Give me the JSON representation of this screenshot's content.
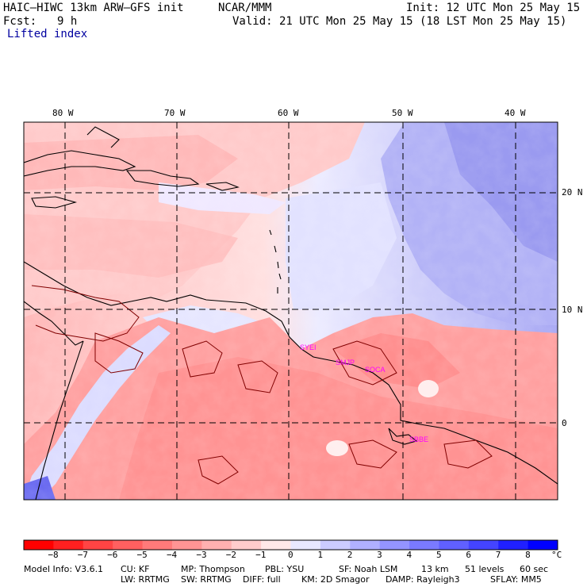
{
  "header": {
    "model": "HAIC–HIWC 13km ARW–GFS init",
    "org": "NCAR/MMM",
    "init": "Init: 12 UTC Mon 25 May 15",
    "fcst_label": "Fcst:",
    "fcst_value": "9 h",
    "valid": "Valid: 21 UTC Mon 25 May 15 (18 LST Mon 25 May 15)",
    "field": "Lifted index"
  },
  "map": {
    "lon_labels": [
      "80 W",
      "70 W",
      "60 W",
      "50 W",
      "40 W"
    ],
    "lat_labels": [
      "20 N",
      "10 N",
      "0"
    ],
    "stations": [
      "SYEI",
      "SMJP",
      "SOCA",
      "SBBE"
    ]
  },
  "colorbar": {
    "ticks": [
      "−8",
      "−7",
      "−6",
      "−5",
      "−4",
      "−3",
      "−2",
      "−1",
      "0",
      "1",
      "2",
      "3",
      "4",
      "5",
      "6",
      "7",
      "8"
    ],
    "unit": "°C",
    "colors": [
      "#ff0000",
      "#ff2020",
      "#ff4444",
      "#ff6060",
      "#ff7a7a",
      "#ff9494",
      "#ffb0b0",
      "#ffcccc",
      "#ffe8e8",
      "#e8e8ff",
      "#ccccff",
      "#b0b0ff",
      "#9494ff",
      "#7a7aff",
      "#6060ff",
      "#4444ff",
      "#2020ff",
      "#0000ff"
    ]
  },
  "footer": {
    "line1": [
      "Model Info: V3.6.1",
      "CU: KF",
      "MP: Thompson",
      "PBL: YSU",
      "SF: Noah LSM",
      "13 km",
      "51 levels",
      "60 sec"
    ],
    "line2": [
      "LW: RRTMG",
      "SW: RRTMG",
      "DIFF: full",
      "KM: 2D Smagor",
      "DAMP: Rayleigh3",
      "SFLAY: MM5"
    ]
  }
}
